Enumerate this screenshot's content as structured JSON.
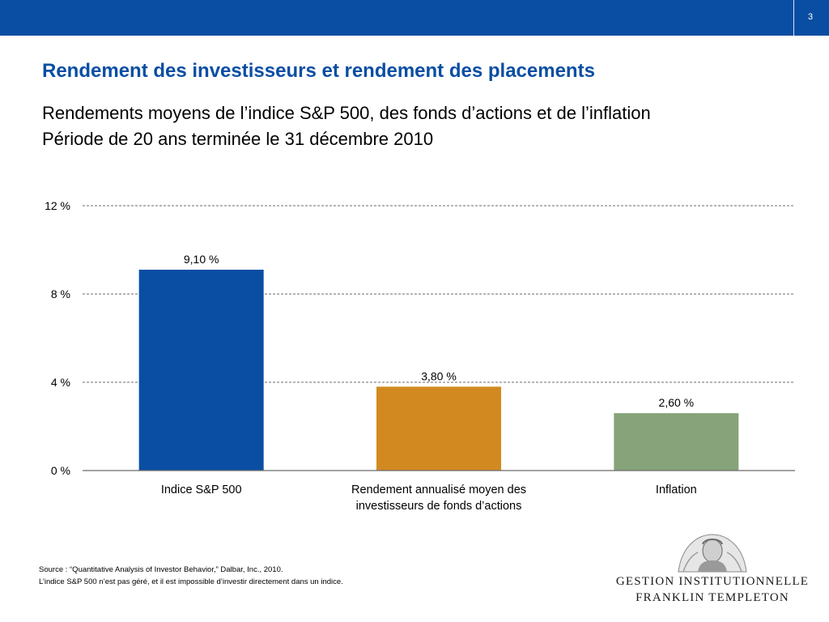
{
  "header": {
    "page_number": "3",
    "brand_color": "#0a4ea3"
  },
  "title": "Rendement des investisseurs et rendement des placements",
  "subtitle": {
    "line1": "Rendements moyens de l’indice S&P 500, des fonds d’actions et de l’inflation",
    "line2": "Période de 20 ans terminée le 31 décembre 2010"
  },
  "chart_data": {
    "type": "bar",
    "categories": [
      [
        "Indice S&P 500"
      ],
      [
        "Rendement annualisé moyen des",
        "investisseurs de fonds d’actions"
      ],
      [
        "Inflation"
      ]
    ],
    "values": [
      9.1,
      3.8,
      2.6
    ],
    "data_labels": [
      "9,10 %",
      "3,80 %",
      "2,60 %"
    ],
    "colors": [
      "#0a4ea3",
      "#d28a20",
      "#86a37a"
    ],
    "ylim": [
      0,
      12
    ],
    "yticks": [
      0,
      4,
      8,
      12
    ],
    "ytick_labels": [
      "0 %",
      "4 %",
      "8 %",
      "12 %"
    ],
    "grid": true,
    "xlabel": "",
    "ylabel": ""
  },
  "footer": {
    "source": "Source : “Quantitative Analysis of Investor Behavior,” Dalbar, Inc., 2010.",
    "note": "L’indice S&P 500 n’est pas géré, et il est impossible d’investir directement dans un indice."
  },
  "logo": {
    "line1": "GESTION INSTITUTIONNELLE",
    "line2": "FRANKLIN TEMPLETON",
    "icon": "franklin-portrait-seal"
  }
}
